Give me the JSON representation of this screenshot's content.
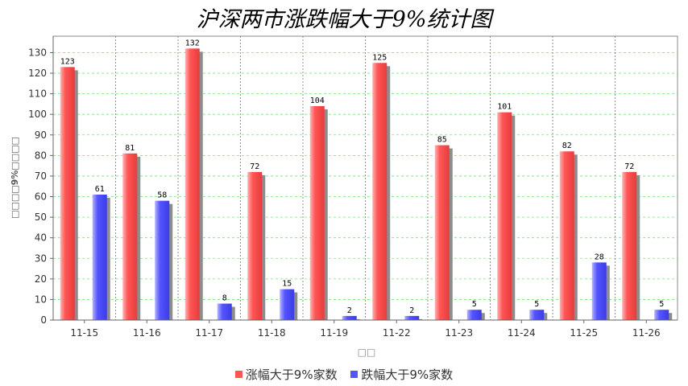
{
  "chart_data": {
    "type": "bar",
    "title": "沪深两市涨跌幅大于9%统计图",
    "xlabel": "□□",
    "ylabel": "□□□□9%□□□□",
    "categories": [
      "11-15",
      "11-16",
      "11-17",
      "11-18",
      "11-19",
      "11-22",
      "11-23",
      "11-24",
      "11-25",
      "11-26"
    ],
    "series": [
      {
        "name": "涨幅大于9%家数",
        "color": "#ff5555",
        "values": [
          123,
          81,
          132,
          72,
          104,
          125,
          85,
          101,
          82,
          72
        ]
      },
      {
        "name": "跌幅大于9%家数",
        "color": "#5555ff",
        "values": [
          61,
          58,
          8,
          15,
          2,
          2,
          5,
          5,
          28,
          5
        ]
      }
    ],
    "ylim": [
      0,
      138
    ],
    "yticks": [
      0,
      10,
      20,
      30,
      40,
      50,
      60,
      70,
      80,
      90,
      100,
      110,
      120,
      130
    ],
    "grid": true,
    "legend_position": "bottom"
  }
}
